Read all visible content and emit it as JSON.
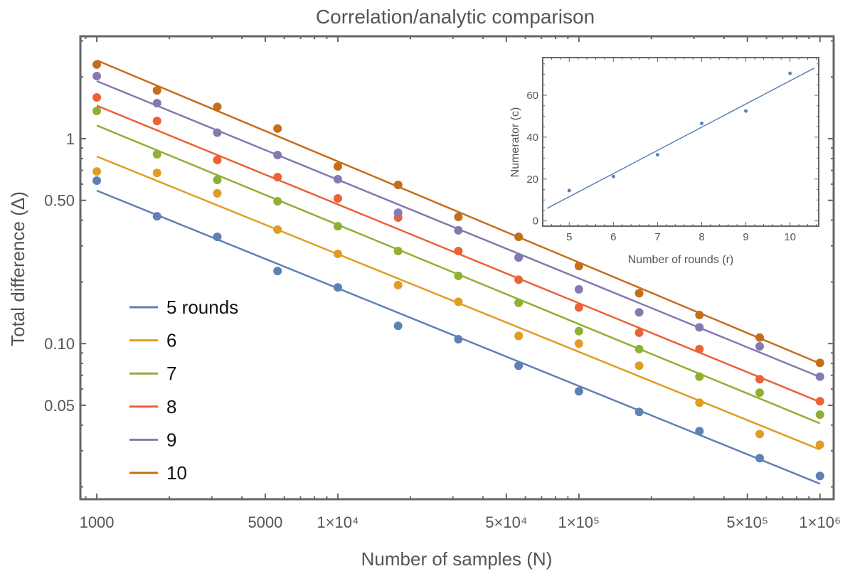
{
  "chart_data": [
    {
      "type": "scatter",
      "title": "Correlation/analytic comparison",
      "xlabel": "Number of samples (N)",
      "ylabel": "Total difference (Δ)",
      "x_scale": "log",
      "y_scale": "log",
      "xlim": [
        855,
        1140000
      ],
      "ylim": [
        0.0174,
        3.16
      ],
      "grid": false,
      "legend_position": "bottom-left",
      "x_ticks": [
        {
          "value": 1000,
          "label": "1000"
        },
        {
          "value": 5000,
          "label": "5000"
        },
        {
          "value": 10000,
          "label": "1×10⁴"
        },
        {
          "value": 50000,
          "label": "5×10⁴"
        },
        {
          "value": 100000,
          "label": "1×10⁵"
        },
        {
          "value": 500000,
          "label": "5×10⁵"
        },
        {
          "value": 1000000,
          "label": "1×10⁶"
        }
      ],
      "y_ticks": [
        {
          "value": 0.05,
          "label": "0.05"
        },
        {
          "value": 0.1,
          "label": "0.10"
        },
        {
          "value": 0.5,
          "label": "0.50"
        },
        {
          "value": 1,
          "label": "1"
        }
      ],
      "x": [
        1000,
        1778,
        3162,
        5623,
        10000,
        17783,
        31623,
        56234,
        100000,
        177828,
        316228,
        562341,
        1000000
      ],
      "series": [
        {
          "name": "5 rounds",
          "color": "#5E81B5",
          "values": [
            0.624,
            0.418,
            0.332,
            0.226,
            0.188,
            0.122,
            0.105,
            0.078,
            0.0585,
            0.0464,
            0.0374,
            0.0276,
            0.0226
          ],
          "fit_values": [
            0.558,
            0.0207
          ]
        },
        {
          "name": "6",
          "color": "#E19C24",
          "values": [
            0.692,
            0.681,
            0.541,
            0.36,
            0.274,
            0.193,
            0.16,
            0.109,
            0.1,
            0.078,
            0.0515,
            0.0362,
            0.0321
          ],
          "fit_values": [
            0.819,
            0.0304
          ]
        },
        {
          "name": "7",
          "color": "#8FB032",
          "values": [
            1.365,
            0.839,
            0.629,
            0.495,
            0.374,
            0.283,
            0.214,
            0.158,
            0.115,
            0.094,
            0.069,
            0.0576,
            0.045
          ],
          "fit_values": [
            1.16,
            0.0408
          ]
        },
        {
          "name": "8",
          "color": "#EB6235",
          "values": [
            1.59,
            1.22,
            0.787,
            0.649,
            0.511,
            0.412,
            0.283,
            0.205,
            0.15,
            0.113,
            0.094,
            0.067,
            0.0523
          ],
          "fit_values": [
            1.45,
            0.0519
          ]
        },
        {
          "name": "9",
          "color": "#8778B3",
          "values": [
            2.02,
            1.49,
            1.07,
            0.832,
            0.634,
            0.435,
            0.357,
            0.263,
            0.184,
            0.142,
            0.12,
            0.097,
            0.069
          ],
          "fit_values": [
            1.91,
            0.0687
          ]
        },
        {
          "name": "10",
          "color": "#C56E1A",
          "values": [
            2.3,
            1.72,
            1.43,
            1.12,
            0.732,
            0.595,
            0.415,
            0.332,
            0.239,
            0.176,
            0.138,
            0.107,
            0.0805
          ],
          "fit_values": [
            2.41,
            0.08
          ]
        }
      ]
    },
    {
      "type": "scatter",
      "title": "",
      "xlabel": "Number of rounds (r)",
      "ylabel": "Numerator (c)",
      "xlim": [
        4.4,
        10.65
      ],
      "ylim": [
        -2.5,
        78
      ],
      "grid": false,
      "x_ticks": [
        5,
        6,
        7,
        8,
        9,
        10
      ],
      "y_ticks": [
        0,
        20,
        40,
        60
      ],
      "color": "#5E81B5",
      "x": [
        5,
        6,
        7,
        8,
        9,
        10
      ],
      "y": [
        14.5,
        21.2,
        31.6,
        46.6,
        52.5,
        70.5
      ],
      "fit_line": {
        "x": [
          4.5,
          10.55
        ],
        "y": [
          6,
          73
        ]
      }
    }
  ]
}
